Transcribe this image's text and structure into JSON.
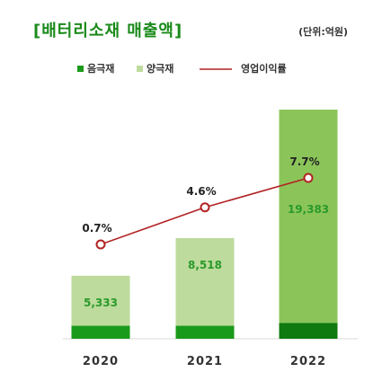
{
  "title": "[배터리소재 매출액]",
  "unit": "(단위:억원)",
  "colors": {
    "anode": "#1a9a1a",
    "anode_dark": "#0f7a0f",
    "cathode": "#bddb9c",
    "cathode_2022": "#8bc55a",
    "line": "#b22222",
    "title": "#1a8a1a",
    "value_text": "#2a9a2a"
  },
  "chart_data": {
    "type": "bar",
    "title": "[배터리소재 매출액]",
    "unit": "(단위:억원)",
    "categories": [
      "2020",
      "2021",
      "2022"
    ],
    "legend": [
      "음극재",
      "양극재",
      "영업이익률"
    ],
    "legend_position": "top",
    "series": [
      {
        "name": "음극재",
        "kind": "stacked-bar",
        "values": [
          1100,
          1100,
          1350
        ]
      },
      {
        "name": "양극재",
        "kind": "stacked-bar",
        "values": [
          4233,
          7418,
          18033
        ]
      },
      {
        "name": "영업이익률",
        "kind": "line",
        "values": [
          0.7,
          4.6,
          7.7
        ]
      }
    ],
    "bar_labels": [
      "5,333",
      "8,518",
      "19,383"
    ],
    "line_labels": [
      "0.7%",
      "4.6%",
      "7.7%"
    ],
    "ylim": [
      0,
      19383
    ],
    "grid": false
  }
}
